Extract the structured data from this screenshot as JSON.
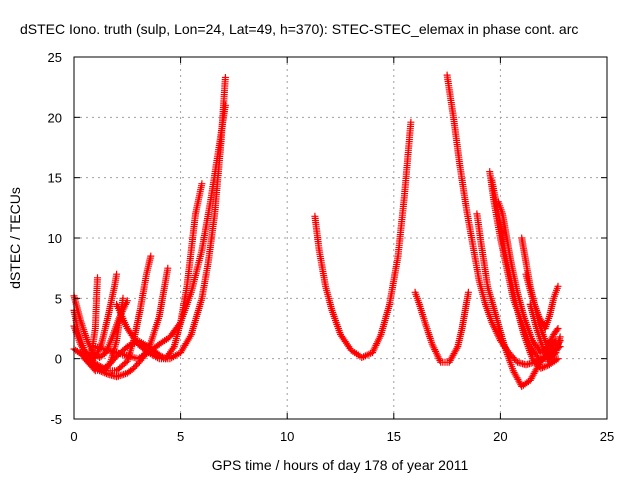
{
  "chart_data": {
    "type": "scatter",
    "title": "dSTEC Iono. truth (sulp, Lon=24, Lat=49, h=370): STEC-STEC_elemax in phase cont. arc",
    "xlabel": "GPS time / hours of day 178 of year 2011",
    "ylabel": "dSTEC  / TECUs",
    "xlim": [
      0,
      25
    ],
    "ylim": [
      -5,
      25
    ],
    "xticks": [
      0,
      5,
      10,
      15,
      20,
      25
    ],
    "yticks": [
      -5,
      0,
      5,
      10,
      15,
      20,
      25
    ],
    "grid": true,
    "marker": "plus",
    "color": "#ff0000",
    "series": [
      {
        "x": [
          0.0,
          0.3,
          0.6,
          0.9,
          1.0,
          1.3,
          1.6,
          1.9,
          2.0
        ],
        "y": [
          2.7,
          1.2,
          0.3,
          0.0,
          0.1,
          1.3,
          3.5,
          6.0,
          7.0
        ]
      },
      {
        "x": [
          0.0,
          0.2,
          0.5,
          0.8,
          1.0,
          1.1
        ],
        "y": [
          4.0,
          2.2,
          0.6,
          0.2,
          2.5,
          6.7
        ]
      },
      {
        "x": [
          0.0,
          0.3,
          0.6,
          0.9,
          1.2,
          1.5,
          1.8,
          2.1,
          2.5
        ],
        "y": [
          5.2,
          3.2,
          1.6,
          0.5,
          0.1,
          0.5,
          1.8,
          3.3,
          4.8
        ]
      },
      {
        "x": [
          0.0,
          0.4,
          0.8,
          1.1,
          1.4,
          1.7,
          2.0,
          2.3
        ],
        "y": [
          0.8,
          0.3,
          -0.2,
          -0.5,
          -0.8,
          -0.4,
          1.5,
          5.0
        ]
      },
      {
        "x": [
          0.5,
          1.0,
          1.5,
          2.0,
          2.5,
          2.8,
          3.1,
          3.4,
          3.6
        ],
        "y": [
          0.0,
          -0.6,
          -1.0,
          -1.0,
          -0.2,
          1.5,
          4.0,
          7.0,
          8.5
        ]
      },
      {
        "x": [
          0.3,
          0.8,
          1.2,
          1.6,
          2.0,
          2.5,
          2.8,
          3.2,
          3.6,
          4.0,
          4.2,
          4.4
        ],
        "y": [
          0.5,
          -0.5,
          -1.0,
          -1.3,
          -1.5,
          -1.2,
          -0.8,
          0.0,
          1.3,
          3.5,
          5.5,
          7.5
        ]
      },
      {
        "x": [
          0.5,
          1.0,
          1.5,
          2.0,
          2.5,
          3.0,
          3.5,
          4.0,
          4.3,
          4.7,
          5.0,
          5.3,
          5.5,
          5.7,
          6.0
        ],
        "y": [
          0.0,
          -1.0,
          -0.8,
          0.2,
          1.0,
          1.5,
          1.0,
          0.3,
          0.0,
          1.0,
          3.0,
          6.0,
          9.0,
          12.0,
          14.5
        ]
      },
      {
        "x": [
          2.0,
          2.5,
          3.0,
          3.5,
          4.0,
          4.5,
          5.0,
          5.5,
          6.0,
          6.3,
          6.6,
          6.9,
          7.1
        ],
        "y": [
          4.5,
          2.5,
          1.2,
          0.5,
          0.0,
          0.0,
          0.5,
          2.0,
          5.0,
          8.0,
          12.0,
          18.0,
          23.3
        ]
      },
      {
        "x": [
          1.0,
          2.0,
          3.0,
          3.5,
          4.0,
          4.5,
          5.0,
          5.5,
          6.0,
          6.4,
          6.8,
          7.1
        ],
        "y": [
          1.0,
          0.5,
          0.0,
          0.5,
          1.2,
          1.8,
          3.0,
          5.5,
          9.0,
          13.0,
          17.5,
          21.0
        ]
      },
      {
        "x": [
          11.3,
          11.5,
          11.8,
          12.1,
          12.5,
          13.0,
          13.5,
          14.0,
          14.4,
          14.8,
          15.2,
          15.5,
          15.8
        ],
        "y": [
          11.8,
          9.0,
          6.0,
          4.0,
          2.0,
          0.7,
          0.1,
          0.5,
          2.0,
          4.5,
          8.5,
          13.5,
          19.6
        ]
      },
      {
        "x": [
          16.0,
          16.2,
          16.5,
          16.8,
          17.2,
          17.6,
          18.0,
          18.2,
          18.4,
          18.5
        ],
        "y": [
          5.5,
          4.5,
          2.8,
          1.2,
          -0.3,
          -0.3,
          1.0,
          2.5,
          4.5,
          5.5
        ]
      },
      {
        "x": [
          17.5,
          17.8,
          18.1,
          18.4,
          18.7,
          19.0,
          19.3,
          19.6,
          20.0,
          20.4,
          20.8,
          21.2,
          21.6,
          22.0,
          22.4,
          22.8
        ],
        "y": [
          23.5,
          20.0,
          16.0,
          12.5,
          9.5,
          6.5,
          4.5,
          3.0,
          1.5,
          0.5,
          -0.3,
          -0.5,
          -0.3,
          0.0,
          0.5,
          1.0
        ]
      },
      {
        "x": [
          18.9,
          19.1,
          19.4,
          19.8,
          20.2,
          20.6,
          21.0,
          21.4,
          21.8,
          22.2,
          22.6
        ],
        "y": [
          12.0,
          9.5,
          6.0,
          3.5,
          1.0,
          -1.0,
          -2.3,
          -1.8,
          -0.5,
          0.5,
          1.5
        ]
      },
      {
        "x": [
          19.5,
          19.7,
          20.0,
          20.3,
          20.6,
          21.0,
          21.4,
          21.8,
          22.2,
          22.6
        ],
        "y": [
          15.5,
          13.0,
          10.0,
          7.5,
          5.0,
          3.0,
          1.0,
          0.0,
          0.0,
          0.5
        ]
      },
      {
        "x": [
          19.6,
          19.9,
          20.2,
          20.5,
          20.8,
          21.1,
          21.5,
          21.9,
          22.3,
          22.7
        ],
        "y": [
          14.8,
          12.0,
          9.0,
          6.5,
          4.0,
          2.0,
          0.0,
          -0.8,
          -0.5,
          0.0
        ]
      },
      {
        "x": [
          19.9,
          20.1,
          20.3,
          20.5,
          20.8,
          21.1,
          21.5,
          21.9,
          22.2,
          22.5,
          22.7
        ],
        "y": [
          13.0,
          12.0,
          10.0,
          8.0,
          5.5,
          3.5,
          1.5,
          0.5,
          1.0,
          2.0,
          2.5
        ]
      },
      {
        "x": [
          21.0,
          21.2,
          21.4,
          21.6,
          21.8,
          22.0,
          22.2,
          22.4,
          22.6,
          22.8
        ],
        "y": [
          10.0,
          8.0,
          6.0,
          4.5,
          3.0,
          2.0,
          1.0,
          0.5,
          0.8,
          1.5
        ]
      },
      {
        "x": [
          21.2,
          21.5,
          21.8,
          22.1,
          22.3,
          22.5,
          22.7
        ],
        "y": [
          7.0,
          5.0,
          3.5,
          2.5,
          3.5,
          5.0,
          6.0
        ]
      },
      {
        "x": [
          21.4,
          21.7,
          22.0,
          22.3,
          22.6,
          22.8
        ],
        "y": [
          4.5,
          2.5,
          0.8,
          -0.2,
          0.5,
          1.8
        ]
      }
    ]
  }
}
